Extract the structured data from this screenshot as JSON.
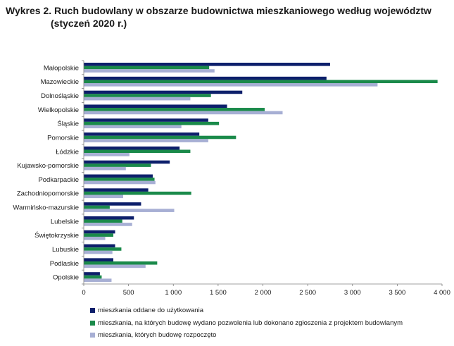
{
  "title": {
    "line1": "Wykres 2. Ruch budowlany w obszarze budownictwa mieszkaniowego według województw",
    "line2": "(styczeń 2020 r.)"
  },
  "chart_data": {
    "type": "bar",
    "orientation": "horizontal",
    "title": "Wykres 2. Ruch budowlany w obszarze budownictwa mieszkaniowego według województw (styczeń 2020 r.)",
    "categories": [
      "Małopolskie",
      "Mazowieckie",
      "Dolnośląskie",
      "Wielkopolskie",
      "Śląskie",
      "Pomorskie",
      "Łódzkie",
      "Kujawsko-pomorskie",
      "Podkarpackie",
      "Zachodniopomorskie",
      "Warmińsko-mazurskie",
      "Lubelskie",
      "Świętokrzyskie",
      "Lubuskie",
      "Podlaskie",
      "Opolskie"
    ],
    "series": [
      {
        "name": "mieszkania oddane do użytkowania",
        "color": "#0d1f6b",
        "values": [
          2750,
          2710,
          1770,
          1600,
          1390,
          1290,
          1070,
          960,
          770,
          720,
          640,
          560,
          350,
          350,
          330,
          180
        ]
      },
      {
        "name": "mieszkania, na których budowę wydano pozwolenia lub dokonano zgłoszenia z projektem budowlanym",
        "color": "#1a8a4a",
        "values": [
          1400,
          3950,
          1420,
          2020,
          1510,
          1700,
          1190,
          750,
          790,
          1200,
          290,
          430,
          330,
          420,
          820,
          200
        ]
      },
      {
        "name": "mieszkania, których budowę rozpoczęto",
        "color": "#a7afd4",
        "values": [
          1460,
          3280,
          1190,
          2220,
          1090,
          1390,
          510,
          470,
          800,
          440,
          1010,
          540,
          240,
          320,
          690,
          310
        ]
      }
    ],
    "xlim": [
      0,
      4000
    ],
    "xticks": [
      0,
      500,
      1000,
      1500,
      2000,
      2500,
      3000,
      3500,
      4000
    ],
    "xtick_labels": [
      "0",
      "500",
      "1 000",
      "1 500",
      "2 000",
      "2 500",
      "3 000",
      "3 500",
      "4 000"
    ],
    "grid": false,
    "legend_position": "bottom"
  }
}
